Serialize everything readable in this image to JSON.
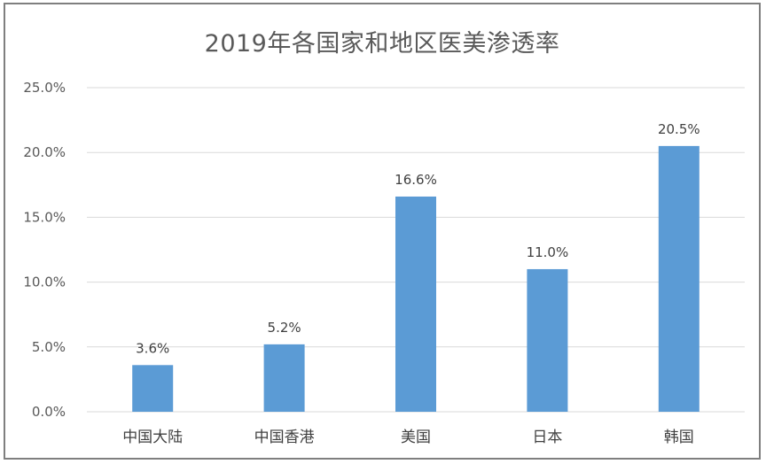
{
  "chart_data": {
    "type": "bar",
    "title": "2019年各国家和地区医美渗透率",
    "categories": [
      "中国大陆",
      "中国香港",
      "美国",
      "日本",
      "韩国"
    ],
    "values": [
      3.6,
      5.2,
      16.6,
      11.0,
      20.5
    ],
    "data_labels": [
      "3.6%",
      "5.2%",
      "16.6%",
      "11.0%",
      "20.5%"
    ],
    "ylim": [
      0,
      25
    ],
    "yticks": [
      0,
      5,
      10,
      15,
      20,
      25
    ],
    "ytick_labels": [
      "0.0%",
      "5.0%",
      "10.0%",
      "15.0%",
      "20.0%",
      "25.0%"
    ],
    "xlabel": "",
    "ylabel": "",
    "grid": true,
    "legend": "none",
    "bar_color": "#5b9bd5",
    "grid_color": "#d9d9d9"
  }
}
